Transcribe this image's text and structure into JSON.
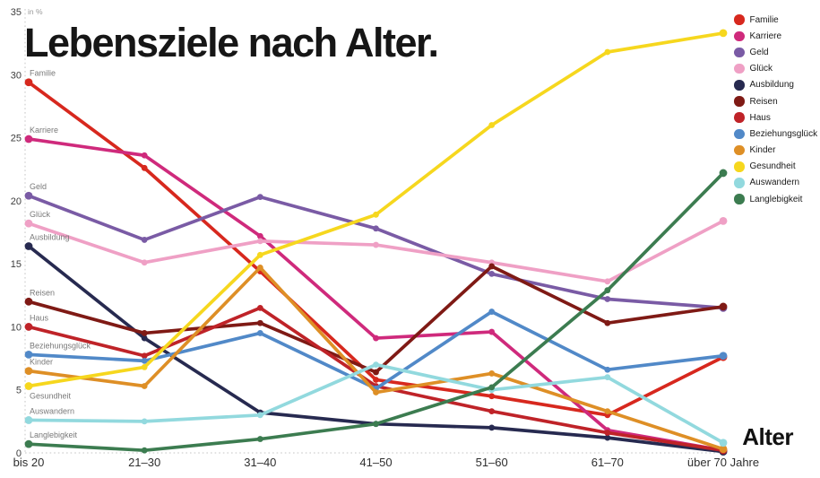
{
  "title": "Lebensziele nach Alter.",
  "y_axis": {
    "unit_label": "in %",
    "ticks": [
      35,
      30,
      25,
      20,
      15,
      10,
      5,
      0
    ]
  },
  "x_axis": {
    "label": "Alter"
  },
  "chart_data": {
    "type": "line",
    "title": "Lebensziele nach Alter.",
    "ylabel": "in %",
    "xlabel": "Alter",
    "ylim": [
      0,
      35
    ],
    "grid": false,
    "legend_position": "top-right",
    "categories": [
      "bis 20",
      "21–30",
      "31–40",
      "41–50",
      "51–60",
      "61–70",
      "über 70 Jahre"
    ],
    "series": [
      {
        "name": "Familie",
        "color": "#d7281e",
        "values": [
          29.4,
          22.6,
          14.4,
          5.8,
          4.5,
          3.0,
          7.6
        ]
      },
      {
        "name": "Karriere",
        "color": "#cf2a7c",
        "values": [
          24.9,
          23.6,
          17.2,
          9.1,
          9.6,
          1.8,
          0.2
        ]
      },
      {
        "name": "Geld",
        "color": "#7a5ba5",
        "values": [
          20.4,
          16.9,
          20.3,
          17.8,
          14.2,
          12.2,
          11.5
        ]
      },
      {
        "name": "Glück",
        "color": "#efa0c5",
        "values": [
          18.2,
          15.1,
          16.8,
          16.5,
          15.1,
          13.6,
          18.4
        ]
      },
      {
        "name": "Ausbildung",
        "color": "#272a50",
        "values": [
          16.4,
          9.1,
          3.2,
          2.3,
          2.0,
          1.2,
          0.1
        ]
      },
      {
        "name": "Reisen",
        "color": "#7f1a15",
        "values": [
          12.0,
          9.5,
          10.3,
          6.4,
          14.8,
          10.3,
          11.6
        ]
      },
      {
        "name": "Haus",
        "color": "#bf2328",
        "values": [
          10.0,
          7.7,
          11.5,
          5.3,
          3.3,
          1.6,
          0.2
        ]
      },
      {
        "name": "Beziehungsglück",
        "color": "#5189c8",
        "values": [
          7.8,
          7.3,
          9.5,
          5.1,
          11.2,
          6.6,
          7.7
        ]
      },
      {
        "name": "Kinder",
        "color": "#de8f26",
        "values": [
          6.5,
          5.3,
          14.7,
          4.8,
          6.3,
          3.3,
          0.3
        ]
      },
      {
        "name": "Gesundheit",
        "color": "#f6d71e",
        "values": [
          5.3,
          6.8,
          15.7,
          18.9,
          26.0,
          31.8,
          33.3
        ]
      },
      {
        "name": "Auswandern",
        "color": "#92d9de",
        "values": [
          2.6,
          2.5,
          3.0,
          7.0,
          5.0,
          6.0,
          0.8
        ]
      },
      {
        "name": "Langlebigkeit",
        "color": "#3c7c50",
        "values": [
          0.7,
          0.2,
          1.1,
          2.3,
          5.2,
          12.9,
          22.2
        ]
      }
    ]
  }
}
